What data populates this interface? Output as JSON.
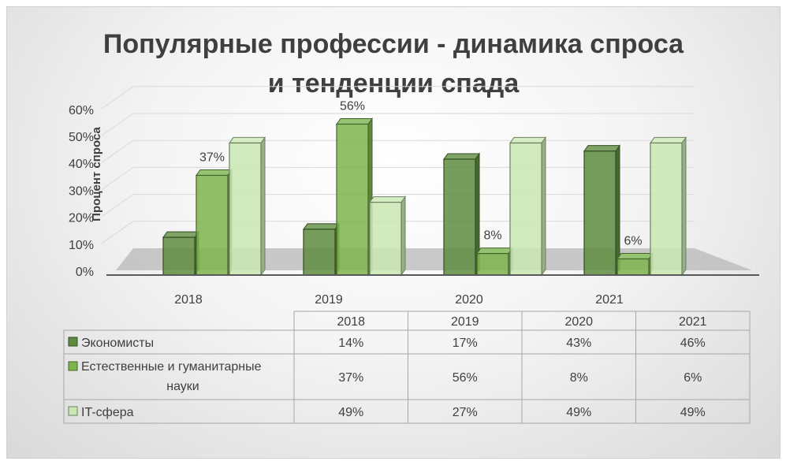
{
  "chart_data": {
    "type": "bar",
    "title_lines": [
      "Популярные профессии - динамика спроса",
      "и тенденции спада"
    ],
    "ylabel": "Процент спроса",
    "xlabel": "",
    "ylim": [
      0,
      60
    ],
    "yticks": [
      "0%",
      "10%",
      "20%",
      "30%",
      "40%",
      "50%",
      "60%"
    ],
    "categories": [
      "2018",
      "2019",
      "2020",
      "2021"
    ],
    "series": [
      {
        "name": "Экономисты",
        "values": [
          14,
          17,
          43,
          46
        ],
        "color": "#5e8c3f"
      },
      {
        "name": "Естественные и гуманитарные науки",
        "values": [
          37,
          56,
          8,
          6
        ],
        "color": "#7cb44e"
      },
      {
        "name": "IT-сфера",
        "values": [
          49,
          27,
          49,
          49
        ],
        "color": "#c9e8b3"
      }
    ],
    "data_labels": [
      {
        "series": 1,
        "category": 0,
        "text": "37%"
      },
      {
        "series": 1,
        "category": 1,
        "text": "56%"
      },
      {
        "series": 1,
        "category": 2,
        "text": "8%"
      },
      {
        "series": 1,
        "category": 3,
        "text": "6%"
      }
    ],
    "data_table": {
      "rows": [
        {
          "label_lines": [
            "Экономисты"
          ],
          "cells": [
            "14%",
            "17%",
            "43%",
            "46%"
          ]
        },
        {
          "label_lines": [
            "Естественные и гуманитарные",
            "науки"
          ],
          "cells": [
            "37%",
            "56%",
            "8%",
            "6%"
          ]
        },
        {
          "label_lines": [
            "IT-сфера"
          ],
          "cells": [
            "49%",
            "27%",
            "49%",
            "49%"
          ]
        }
      ]
    },
    "grid": true,
    "style": "3d-clustered-column"
  }
}
